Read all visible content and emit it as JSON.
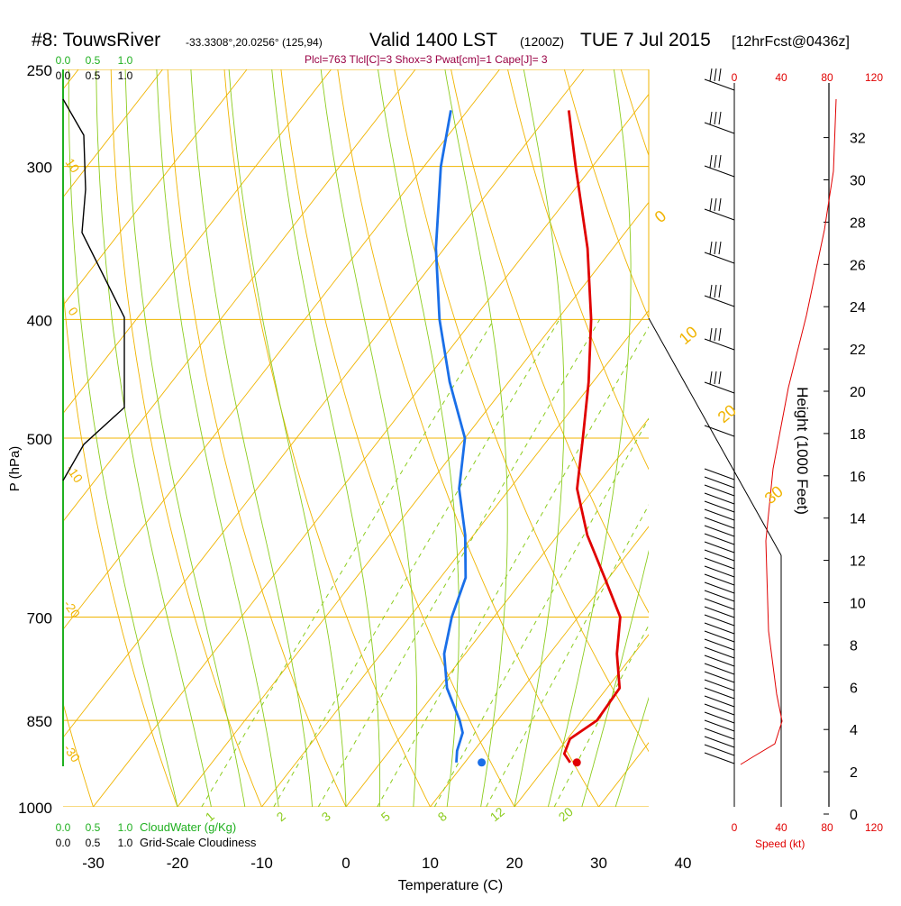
{
  "header": {
    "station": "#8: TouwsRiver",
    "location": "-33.3308°,20.0256° (125,94)",
    "valid": "Valid 1400 LST",
    "zulu": "(1200Z)",
    "date": "TUE 7 Jul 2015",
    "forecast": "[12hrFcst@0436z]",
    "indices": "Plcl=763 Tlcl[C]=3 Shox=3 Pwat[cm]=1 Cape[J]= 3"
  },
  "colors": {
    "temperature": "#e00000",
    "dewpoint": "#1a6fe8",
    "isotherm": "#f0b400",
    "dry_adiabat": "#f0b400",
    "moist_adiabat": "#8ccc1e",
    "mixing_ratio": "#8ccc1e",
    "cloud": "#20b020",
    "wind_profile": "#e00000",
    "title_index": "#990044"
  },
  "chart_data": {
    "type": "line",
    "subtype": "skew-t log-p sounding",
    "xlabel": "Temperature (C)",
    "ylabel": "P (hPa)",
    "xlim": [
      -35,
      47
    ],
    "ylim": [
      1000,
      250
    ],
    "x_ticks": [
      "-30",
      "-20",
      "-10",
      "0",
      "10",
      "20",
      "30",
      "40"
    ],
    "pressure_ticks": [
      "250",
      "300",
      "400",
      "500",
      "700",
      "850",
      "1000"
    ],
    "series": [
      {
        "name": "Temperature",
        "points": [
          {
            "p": 920,
            "t": 22.5
          },
          {
            "p": 905,
            "t": 21.0
          },
          {
            "p": 880,
            "t": 20.3
          },
          {
            "p": 850,
            "t": 21.8
          },
          {
            "p": 800,
            "t": 21.5
          },
          {
            "p": 750,
            "t": 18.0
          },
          {
            "p": 700,
            "t": 15.0
          },
          {
            "p": 650,
            "t": 9.5
          },
          {
            "p": 600,
            "t": 3.5
          },
          {
            "p": 550,
            "t": -2.0
          },
          {
            "p": 500,
            "t": -6.0
          },
          {
            "p": 450,
            "t": -10.5
          },
          {
            "p": 400,
            "t": -16.0
          },
          {
            "p": 350,
            "t": -23.0
          },
          {
            "p": 300,
            "t": -32.0
          },
          {
            "p": 270,
            "t": -38.0
          }
        ]
      },
      {
        "name": "Dewpoint",
        "points": [
          {
            "p": 920,
            "t": 9.0
          },
          {
            "p": 900,
            "t": 8.0
          },
          {
            "p": 870,
            "t": 7.0
          },
          {
            "p": 850,
            "t": 5.5
          },
          {
            "p": 800,
            "t": 1.0
          },
          {
            "p": 750,
            "t": -2.5
          },
          {
            "p": 700,
            "t": -5.0
          },
          {
            "p": 650,
            "t": -7.0
          },
          {
            "p": 600,
            "t": -11.0
          },
          {
            "p": 550,
            "t": -16.0
          },
          {
            "p": 500,
            "t": -20.0
          },
          {
            "p": 450,
            "t": -27.0
          },
          {
            "p": 400,
            "t": -34.0
          },
          {
            "p": 350,
            "t": -41.0
          },
          {
            "p": 300,
            "t": -48.0
          },
          {
            "p": 270,
            "t": -52.0
          }
        ]
      }
    ],
    "surface": {
      "p": 920,
      "t": 23.3,
      "td": 12.0
    },
    "isotherm_labels": [
      "0",
      "10",
      "20",
      "30"
    ],
    "dry_adiabat_labels": [
      "10",
      "0",
      "-10",
      "-20",
      "-30"
    ],
    "mixing_ratio_labels": [
      "1",
      "2",
      "3",
      "5",
      "8",
      "12",
      "20"
    ],
    "cloud_axis": {
      "label_cloudwater": "CloudWater (g/Kg)",
      "label_cloudiness": "Grid-Scale Cloudiness",
      "ticks": [
        "0.0",
        "0.5",
        "1.0"
      ]
    },
    "wind": {
      "speed_label": "Speed (kt)",
      "speed_ticks": [
        "0",
        "40",
        "80",
        "120"
      ]
    },
    "height_axis": {
      "label": "Height (1000 Feet)",
      "ticks": [
        "0",
        "2",
        "4",
        "6",
        "8",
        "10",
        "12",
        "14",
        "16",
        "18",
        "20",
        "22",
        "24",
        "26",
        "28",
        "30",
        "32"
      ]
    }
  }
}
